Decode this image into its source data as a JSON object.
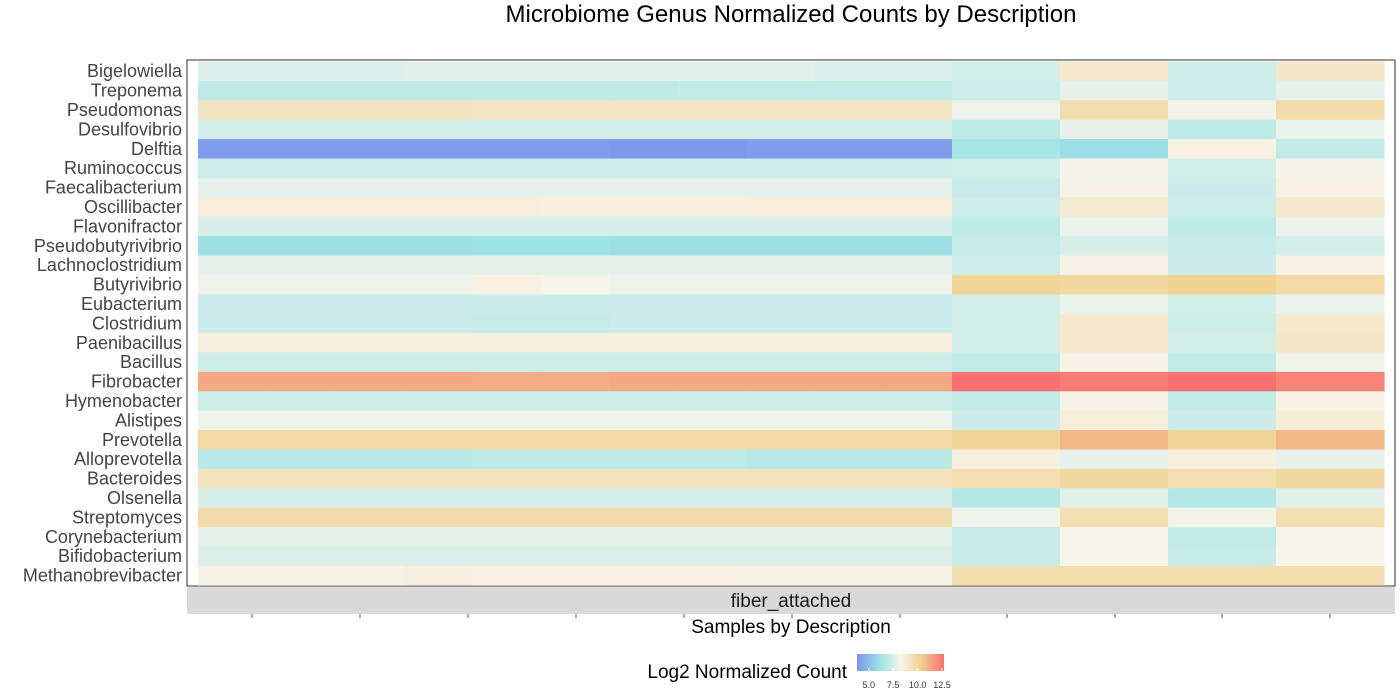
{
  "chart_data": {
    "type": "heatmap",
    "title": "Microbiome Genus Normalized Counts by Description",
    "xlabel": "Samples by Description",
    "facet_label": "fiber_attached",
    "legend": {
      "title": "Log2 Normalized Count",
      "placement": "bottom",
      "range": [
        3.8,
        12.7
      ],
      "ticks": [
        5.0,
        7.5,
        10.0,
        12.5
      ],
      "tick_labels": [
        "5.0",
        "7.5",
        "10.0",
        "12.5"
      ]
    },
    "color_scale": {
      "stops": [
        {
          "value": 3.8,
          "color": "#7b96ee"
        },
        {
          "value": 6.2,
          "color": "#9ee4e4"
        },
        {
          "value": 8.2,
          "color": "#f7f4ec"
        },
        {
          "value": 10.3,
          "color": "#f0d18f"
        },
        {
          "value": 12.7,
          "color": "#f87171"
        }
      ]
    },
    "genera": [
      "Bigelowiella",
      "Treponema",
      "Pseudomonas",
      "Desulfovibrio",
      "Delftia",
      "Ruminococcus",
      "Faecalibacterium",
      "Oscillibacter",
      "Flavonifractor",
      "Pseudobutyrivibrio",
      "Lachnoclostridium",
      "Butyrivibrio",
      "Eubacterium",
      "Clostridium",
      "Paenibacillus",
      "Bacillus",
      "Fibrobacter",
      "Hymenobacter",
      "Alistipes",
      "Prevotella",
      "Alloprevotella",
      "Bacteroides",
      "Olsenella",
      "Streptomyces",
      "Corynebacterium",
      "Bifidobacterium",
      "Methanobrevibacter"
    ],
    "n_samples": 11,
    "values": [
      [
        7.6,
        7.6,
        7.6,
        7.7,
        7.7,
        7.7,
        7.7,
        7.7,
        7.7,
        7.6,
        7.6
      ],
      [
        6.9,
        6.9,
        6.9,
        6.9,
        6.9,
        6.9,
        6.9,
        7.0,
        7.0,
        7.0,
        7.0
      ],
      [
        9.2,
        9.2,
        9.2,
        9.2,
        9.1,
        9.1,
        9.1,
        9.1,
        9.1,
        9.1,
        9.1
      ],
      [
        7.4,
        7.4,
        7.4,
        7.4,
        7.4,
        7.4,
        7.4,
        7.4,
        7.4,
        7.4,
        7.4
      ],
      [
        4.0,
        4.0,
        4.0,
        4.0,
        4.0,
        4.0,
        3.9,
        3.9,
        4.0,
        4.0,
        4.0
      ],
      [
        7.3,
        7.3,
        7.3,
        7.3,
        7.3,
        7.3,
        7.3,
        7.3,
        7.3,
        7.3,
        7.3
      ],
      [
        7.8,
        7.8,
        7.8,
        7.8,
        7.8,
        7.8,
        7.8,
        7.8,
        7.8,
        7.8,
        7.8
      ],
      [
        8.6,
        8.6,
        8.6,
        8.6,
        8.6,
        8.5,
        8.5,
        8.5,
        8.6,
        8.6,
        8.6
      ],
      [
        7.5,
        7.5,
        7.5,
        7.5,
        7.5,
        7.5,
        7.5,
        7.5,
        7.5,
        7.5,
        7.5
      ],
      [
        6.1,
        6.1,
        6.1,
        6.1,
        6.2,
        6.2,
        6.1,
        6.1,
        6.1,
        6.1,
        6.1
      ],
      [
        7.8,
        7.8,
        7.8,
        7.8,
        7.8,
        7.8,
        7.8,
        7.8,
        7.8,
        7.8,
        7.8
      ],
      [
        8.0,
        8.0,
        8.0,
        8.0,
        8.4,
        8.2,
        8.0,
        8.0,
        8.0,
        8.0,
        8.0
      ],
      [
        7.2,
        7.2,
        7.2,
        7.2,
        7.2,
        7.2,
        7.2,
        7.2,
        7.2,
        7.2,
        7.2
      ],
      [
        7.2,
        7.2,
        7.2,
        7.2,
        7.1,
        7.1,
        7.2,
        7.2,
        7.2,
        7.2,
        7.2
      ],
      [
        8.5,
        8.5,
        8.5,
        8.5,
        8.5,
        8.5,
        8.5,
        8.5,
        8.5,
        8.5,
        8.5
      ],
      [
        7.3,
        7.3,
        7.3,
        7.3,
        7.3,
        7.3,
        7.3,
        7.3,
        7.3,
        7.3,
        7.3
      ],
      [
        11.3,
        11.3,
        11.3,
        11.3,
        11.2,
        11.2,
        11.3,
        11.3,
        11.3,
        11.3,
        11.3
      ],
      [
        7.3,
        7.3,
        7.3,
        7.3,
        7.3,
        7.3,
        7.3,
        7.3,
        7.3,
        7.3,
        7.3
      ],
      [
        8.0,
        8.0,
        8.0,
        8.0,
        8.0,
        8.0,
        8.0,
        8.0,
        8.0,
        8.0,
        8.0
      ],
      [
        9.8,
        9.8,
        9.8,
        9.8,
        9.8,
        9.8,
        9.8,
        9.8,
        9.8,
        9.8,
        9.8
      ],
      [
        6.8,
        6.8,
        6.8,
        6.8,
        6.9,
        6.9,
        6.9,
        6.9,
        6.8,
        6.8,
        6.8
      ],
      [
        9.3,
        9.3,
        9.3,
        9.3,
        9.3,
        9.3,
        9.3,
        9.3,
        9.3,
        9.3,
        9.3
      ],
      [
        7.5,
        7.5,
        7.5,
        7.5,
        7.5,
        7.5,
        7.5,
        7.5,
        7.5,
        7.5,
        7.5
      ],
      [
        9.7,
        9.7,
        9.7,
        9.7,
        9.7,
        9.7,
        9.7,
        9.7,
        9.7,
        9.7,
        9.7
      ],
      [
        7.8,
        7.8,
        7.8,
        7.8,
        7.8,
        7.8,
        7.8,
        7.8,
        7.8,
        7.8,
        7.8
      ],
      [
        7.6,
        7.6,
        7.6,
        7.6,
        7.6,
        7.6,
        7.6,
        7.6,
        7.6,
        7.6,
        7.6
      ],
      [
        8.3,
        8.3,
        8.3,
        8.5,
        8.4,
        8.4,
        8.4,
        8.4,
        8.3,
        8.3,
        8.3
      ]
    ],
    "values_right": [
      [
        7.4,
        8.9,
        7.3,
        9.0
      ],
      [
        7.3,
        7.8,
        7.3,
        7.8
      ],
      [
        8.0,
        9.6,
        8.1,
        9.7
      ],
      [
        6.9,
        7.8,
        6.9,
        7.9
      ],
      [
        6.4,
        6.0,
        8.4,
        7.0
      ],
      [
        7.4,
        8.1,
        7.4,
        8.1
      ],
      [
        7.1,
        8.3,
        7.2,
        8.4
      ],
      [
        7.3,
        8.8,
        7.3,
        8.9
      ],
      [
        6.9,
        7.9,
        6.9,
        7.9
      ],
      [
        7.1,
        7.5,
        7.1,
        7.4
      ],
      [
        7.3,
        8.3,
        7.2,
        8.4
      ],
      [
        10.1,
        9.9,
        10.2,
        9.8
      ],
      [
        7.4,
        7.9,
        7.4,
        7.9
      ],
      [
        7.4,
        8.9,
        7.3,
        8.9
      ],
      [
        7.4,
        8.9,
        7.4,
        9.0
      ],
      [
        7.0,
        8.3,
        7.0,
        8.0
      ],
      [
        12.7,
        12.4,
        12.7,
        12.2
      ],
      [
        7.0,
        8.3,
        7.0,
        8.4
      ],
      [
        7.2,
        8.6,
        7.2,
        8.7
      ],
      [
        10.1,
        10.9,
        10.1,
        10.9
      ],
      [
        8.5,
        7.8,
        8.5,
        7.8
      ],
      [
        9.5,
        9.9,
        9.5,
        9.9
      ],
      [
        6.7,
        7.7,
        6.7,
        7.7
      ],
      [
        8.0,
        9.5,
        8.1,
        9.5
      ],
      [
        7.1,
        8.2,
        7.0,
        8.2
      ],
      [
        7.1,
        8.2,
        7.1,
        8.2
      ],
      [
        9.6,
        9.6,
        9.6,
        9.6
      ]
    ]
  }
}
